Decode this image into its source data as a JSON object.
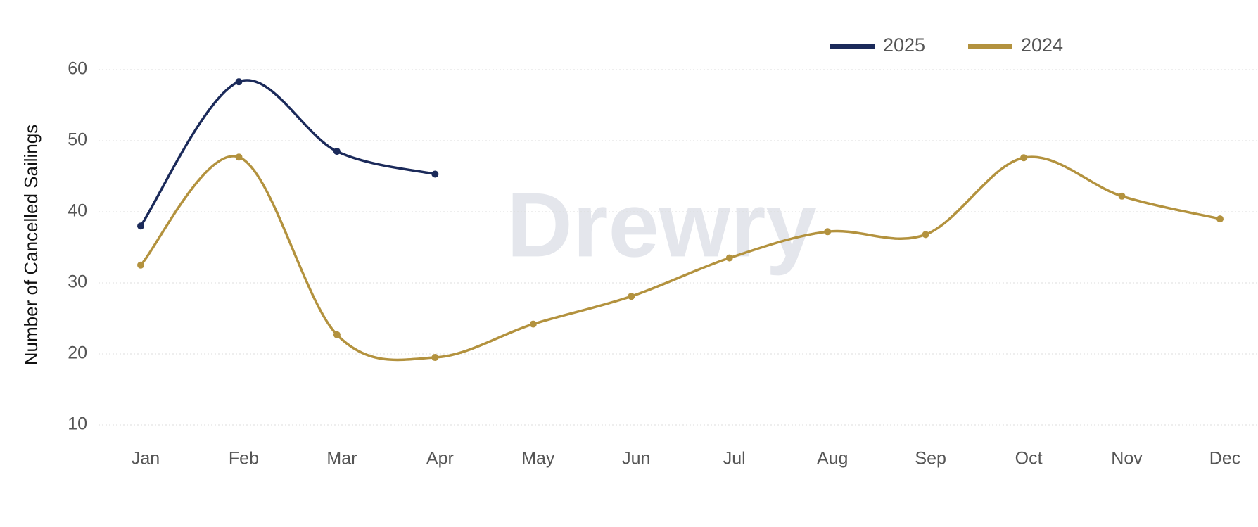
{
  "chart_data": {
    "type": "line",
    "y_label": "Number of Cancelled Sailings",
    "watermark": "Drewry",
    "categories": [
      "Jan",
      "Feb",
      "Mar",
      "Apr",
      "May",
      "Jun",
      "Jul",
      "Aug",
      "Sep",
      "Oct",
      "Nov",
      "Dec"
    ],
    "series": [
      {
        "name": "2025",
        "color": "#1b2a5a",
        "values": [
          38.0,
          58.3,
          48.5,
          45.3,
          null,
          null,
          null,
          null,
          null,
          null,
          null,
          null
        ]
      },
      {
        "name": "2024",
        "color": "#b3923e",
        "values": [
          32.5,
          47.7,
          22.7,
          19.5,
          24.2,
          28.1,
          33.5,
          37.2,
          36.8,
          47.6,
          42.2,
          39.0
        ]
      }
    ],
    "ylim": [
      10,
      60
    ],
    "yticks": [
      10,
      20,
      30,
      40,
      50,
      60
    ],
    "grid": true,
    "legend": "top-right"
  }
}
